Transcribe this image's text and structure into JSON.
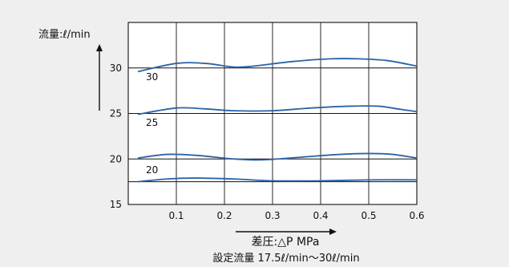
{
  "chart_data": {
    "type": "line",
    "ylabel": "流量:ℓ/min",
    "xlabel": "差圧:△P MPa",
    "caption": "設定流量 17.5ℓ/min〜30ℓ/min",
    "xlim": [
      0,
      0.6
    ],
    "ylim": [
      15,
      35
    ],
    "x_ticks": [
      "0.1",
      "0.2",
      "0.3",
      "0.4",
      "0.5",
      "0.6"
    ],
    "y_ticks": [
      "15",
      "20",
      "25",
      "30"
    ],
    "grid": true,
    "series_color": "#2a63a8",
    "series": [
      {
        "name": "30",
        "x": [
          0.02,
          0.1,
          0.16,
          0.22,
          0.26,
          0.34,
          0.42,
          0.48,
          0.54,
          0.6
        ],
        "y": [
          29.6,
          30.5,
          30.5,
          30.1,
          30.2,
          30.7,
          31.0,
          31.0,
          30.8,
          30.2
        ]
      },
      {
        "name": "25",
        "x": [
          0.02,
          0.1,
          0.16,
          0.22,
          0.3,
          0.38,
          0.46,
          0.52,
          0.56,
          0.6
        ],
        "y": [
          24.9,
          25.6,
          25.5,
          25.3,
          25.3,
          25.6,
          25.8,
          25.8,
          25.5,
          25.2
        ]
      },
      {
        "name": "20",
        "x": [
          0.02,
          0.08,
          0.14,
          0.22,
          0.28,
          0.36,
          0.44,
          0.5,
          0.55,
          0.6
        ],
        "y": [
          20.1,
          20.5,
          20.4,
          20.0,
          19.9,
          20.2,
          20.5,
          20.6,
          20.5,
          20.1
        ]
      },
      {
        "name": "",
        "x": [
          0.02,
          0.08,
          0.14,
          0.22,
          0.3,
          0.4,
          0.5,
          0.6
        ],
        "y": [
          17.5,
          17.8,
          17.9,
          17.8,
          17.6,
          17.6,
          17.7,
          17.7
        ]
      }
    ],
    "series_labels": [
      "30",
      "25",
      "20"
    ]
  }
}
